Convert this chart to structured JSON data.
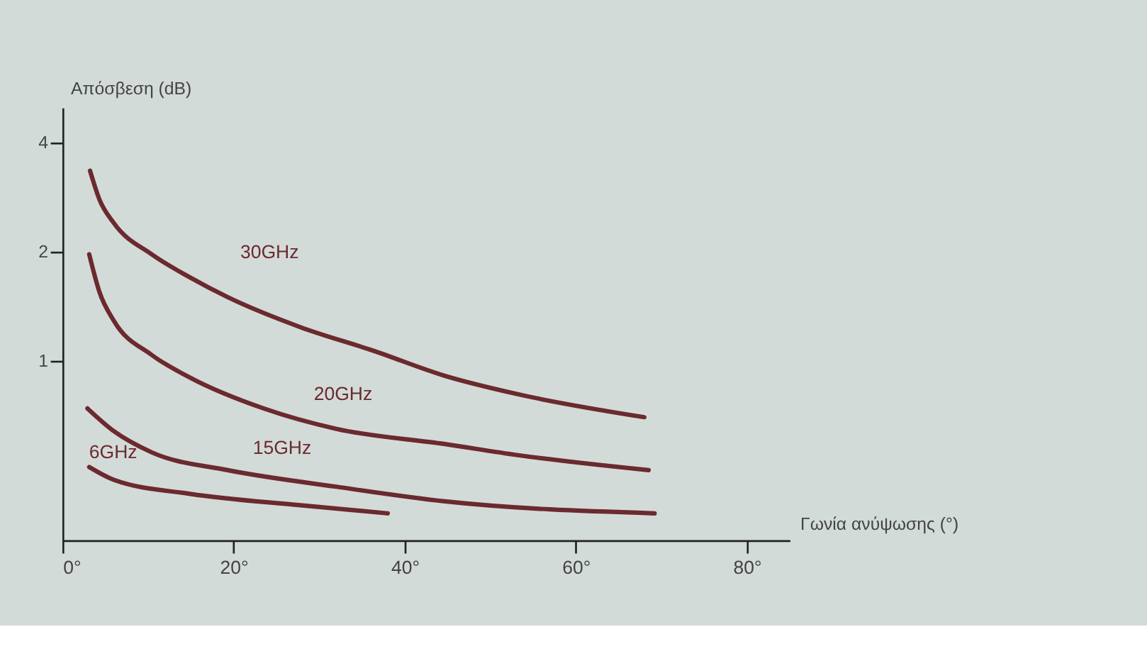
{
  "chart_data": {
    "type": "line",
    "xlabel": "Γωνία ανύψωσης (°)",
    "ylabel": "Απόσβεση (dB)",
    "log": "y",
    "grid": false,
    "legend": false,
    "marker": "none",
    "line_style": "solid",
    "xlim": [
      0,
      85
    ],
    "xticks": [
      {
        "value": 0,
        "label": "0°"
      },
      {
        "value": 20,
        "label": "20°"
      },
      {
        "value": 40,
        "label": "40°"
      },
      {
        "value": 60,
        "label": "60°"
      },
      {
        "value": 80,
        "label": "80°"
      }
    ],
    "ylim": [
      0.32,
      5
    ],
    "yticks": [
      1,
      2,
      4
    ],
    "series": [
      {
        "name": "30GHz",
        "color": "#6b2a2e",
        "x": [
          3.2,
          4.3,
          6,
          10.4,
          14.9,
          19.3,
          27.8,
          36.2,
          44.7,
          53.2,
          68
        ],
        "values": [
          3.35,
          2.79,
          2.4,
          1.97,
          1.7,
          1.5,
          1.24,
          1.07,
          0.91,
          0.81,
          0.7
        ]
      },
      {
        "name": "20GHz",
        "color": "#6b2a2e",
        "x": [
          3.1,
          4.3,
          6,
          10.4,
          14.9,
          23.5,
          32,
          44.7,
          53.2,
          68.5
        ],
        "values": [
          1.97,
          1.55,
          1.29,
          1.04,
          0.9,
          0.74,
          0.65,
          0.59,
          0.55,
          0.5
        ]
      },
      {
        "name": "15GHz",
        "color": "#6b2a2e",
        "x": [
          2.9,
          6,
          10.4,
          19.3,
          32,
          44.7,
          69.2
        ],
        "values": [
          0.74,
          0.64,
          0.56,
          0.5,
          0.45,
          0.41,
          0.38
        ]
      },
      {
        "name": "6GHz",
        "color": "#6b2a2e",
        "x": [
          3.1,
          6,
          14.9,
          27.8,
          38
        ],
        "values": [
          0.51,
          0.47,
          0.43,
          0.4,
          0.38
        ]
      }
    ]
  }
}
